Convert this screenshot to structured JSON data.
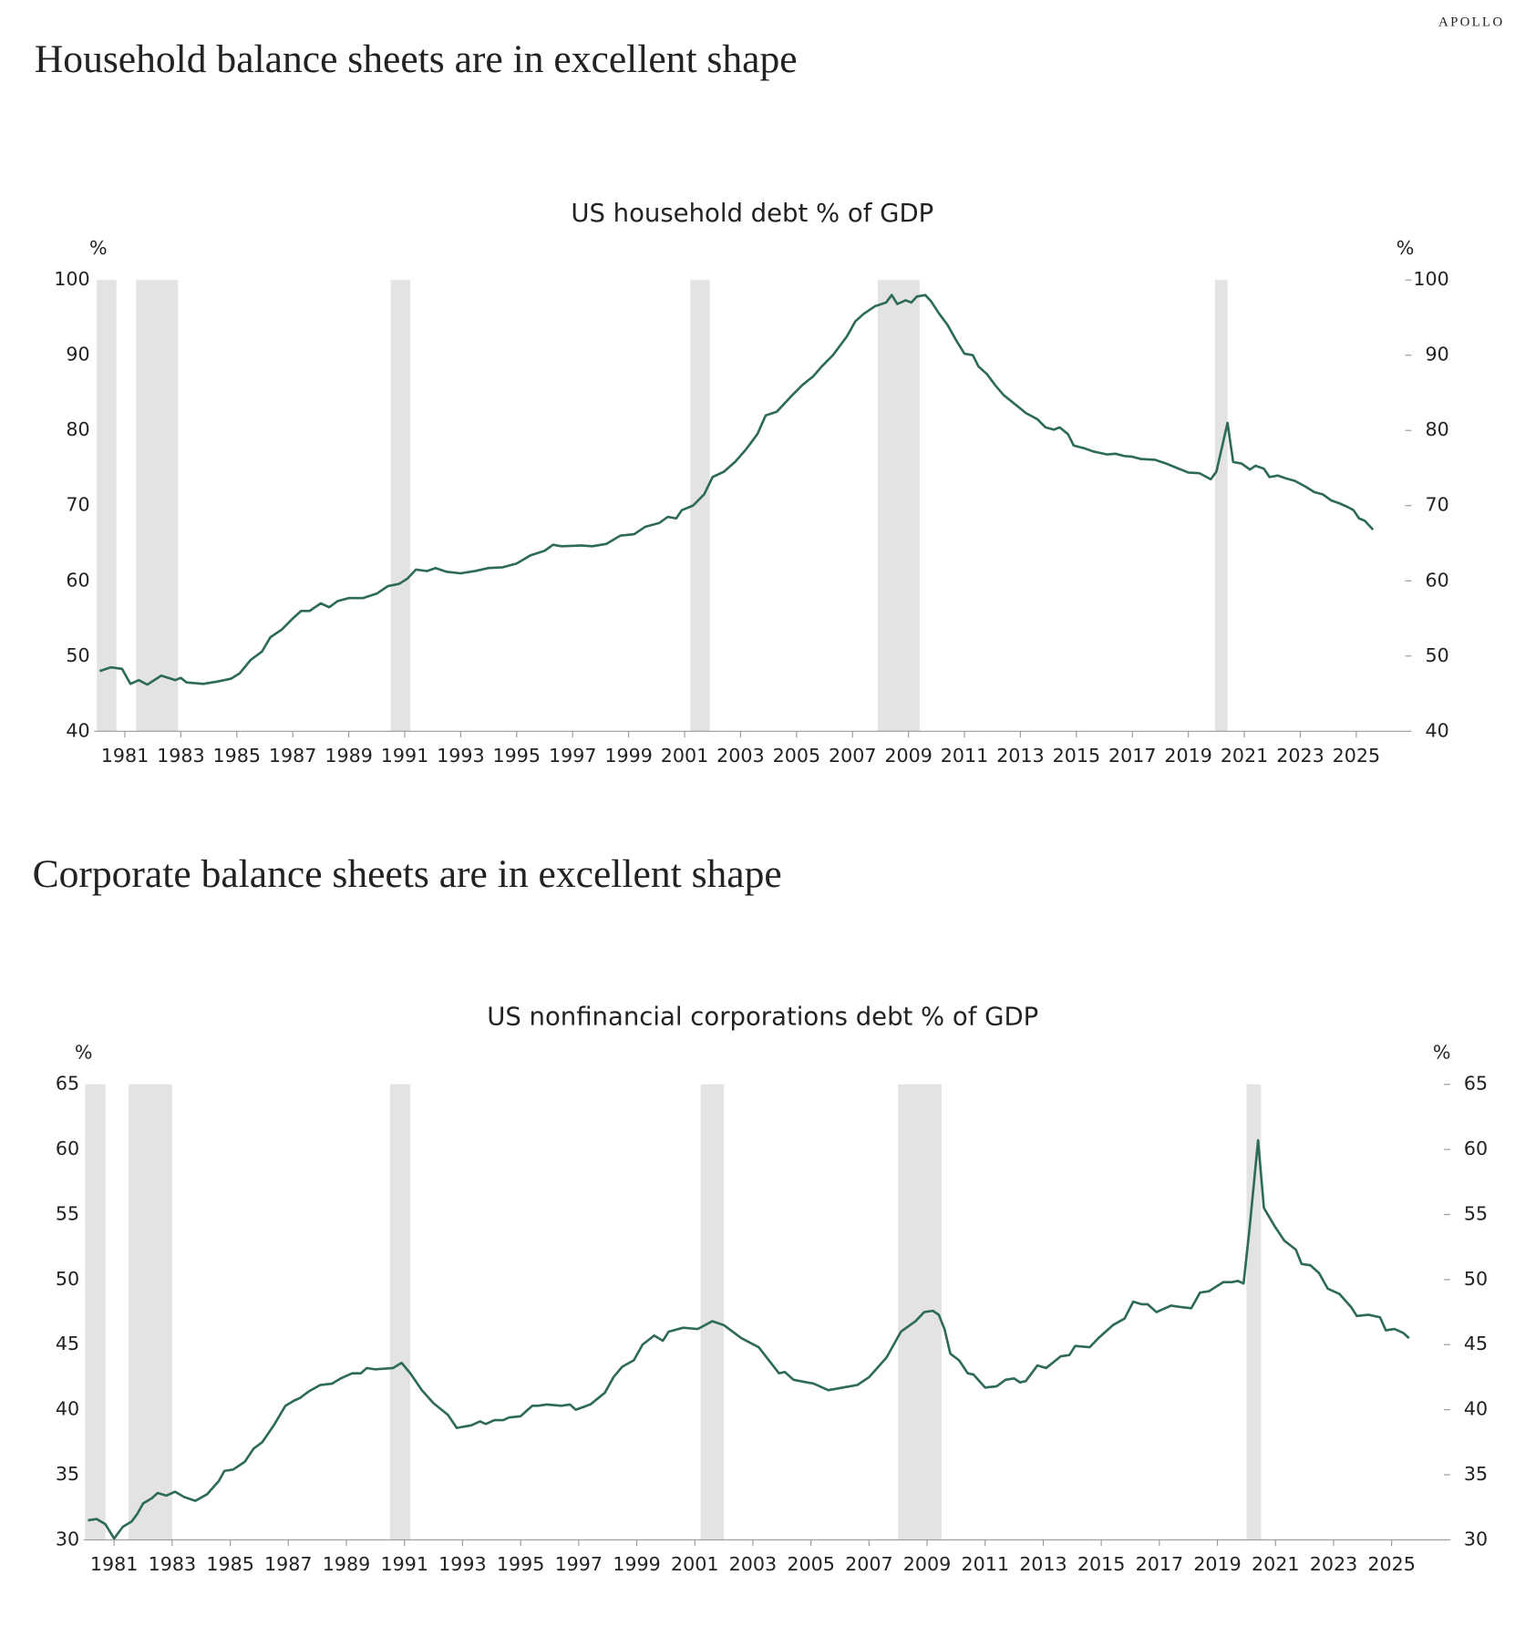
{
  "brand": "APOLLO",
  "chart_data": [
    {
      "type": "line",
      "heading": "Household balance sheets are in excellent shape",
      "title": "US household debt % of GDP",
      "y_unit": "%",
      "color": "#2e6b56",
      "shade_color": "#e3e3e3",
      "xlim": [
        1979.9,
        2026.75
      ],
      "ylim": [
        40,
        100
      ],
      "yticks": [
        40,
        50,
        60,
        70,
        80,
        90,
        100
      ],
      "xticks": [
        1981,
        1983,
        1985,
        1987,
        1989,
        1991,
        1993,
        1995,
        1997,
        1999,
        2001,
        2003,
        2005,
        2007,
        2009,
        2011,
        2013,
        2015,
        2017,
        2019,
        2021,
        2023,
        2025
      ],
      "recessions": [
        [
          1980.0,
          1980.7
        ],
        [
          1981.4,
          1982.9
        ],
        [
          1990.5,
          1991.2
        ],
        [
          2001.2,
          2001.9
        ],
        [
          2007.9,
          2009.4
        ],
        [
          2019.95,
          2020.4
        ]
      ],
      "x": [
        1980.1,
        1980.5,
        1980.9,
        1981.2,
        1981.5,
        1981.8,
        1982.3,
        1982.8,
        1983.0,
        1983.2,
        1983.8,
        1984.3,
        1984.8,
        1985.1,
        1985.5,
        1985.9,
        1986.2,
        1986.6,
        1987.0,
        1987.3,
        1987.6,
        1988.0,
        1988.3,
        1988.6,
        1989.0,
        1989.5,
        1990.0,
        1990.4,
        1990.8,
        1991.1,
        1991.4,
        1991.8,
        1992.1,
        1992.5,
        1993.0,
        1993.5,
        1994.0,
        1994.5,
        1995.0,
        1995.5,
        1996.0,
        1996.3,
        1996.6,
        1997.3,
        1997.7,
        1998.2,
        1998.7,
        1999.2,
        1999.6,
        2000.1,
        2000.4,
        2000.7,
        2000.9,
        2001.3,
        2001.7,
        2002.0,
        2002.4,
        2002.8,
        2003.2,
        2003.6,
        2003.9,
        2004.3,
        2004.8,
        2005.2,
        2005.6,
        2005.9,
        2006.3,
        2006.8,
        2007.1,
        2007.4,
        2007.8,
        2008.2,
        2008.4,
        2008.6,
        2008.9,
        2009.1,
        2009.3,
        2009.6,
        2009.8,
        2010.1,
        2010.4,
        2010.7,
        2011.0,
        2011.3,
        2011.5,
        2011.8,
        2012.1,
        2012.4,
        2012.8,
        2013.2,
        2013.6,
        2013.9,
        2014.2,
        2014.4,
        2014.7,
        2014.9,
        2015.3,
        2015.6,
        2016.1,
        2016.4,
        2016.7,
        2017.0,
        2017.3,
        2017.8,
        2018.2,
        2018.6,
        2019.0,
        2019.4,
        2019.8,
        2020.0,
        2020.4,
        2020.6,
        2020.9,
        2021.2,
        2021.4,
        2021.7,
        2021.9,
        2022.2,
        2022.5,
        2022.8,
        2023.2,
        2023.5,
        2023.8,
        2024.1,
        2024.4,
        2024.7,
        2024.9,
        2025.1,
        2025.3,
        2025.6
      ],
      "values": [
        48.0,
        48.5,
        48.3,
        46.3,
        46.8,
        46.2,
        47.4,
        46.8,
        47.1,
        46.5,
        46.3,
        46.6,
        47.0,
        47.7,
        49.5,
        50.6,
        52.5,
        53.5,
        55.0,
        56.0,
        56.0,
        57.0,
        56.5,
        57.3,
        57.7,
        57.7,
        58.3,
        59.3,
        59.6,
        60.3,
        61.5,
        61.3,
        61.7,
        61.2,
        61.0,
        61.3,
        61.7,
        61.8,
        62.3,
        63.4,
        64.0,
        64.8,
        64.6,
        64.7,
        64.6,
        64.9,
        66.0,
        66.2,
        67.2,
        67.7,
        68.5,
        68.3,
        69.4,
        70.0,
        71.5,
        73.8,
        74.5,
        75.8,
        77.5,
        79.5,
        82.0,
        82.5,
        84.5,
        86.0,
        87.2,
        88.5,
        90.0,
        92.5,
        94.5,
        95.5,
        96.5,
        97.0,
        98.0,
        96.8,
        97.3,
        97.0,
        97.8,
        98.0,
        97.2,
        95.5,
        94.0,
        92.0,
        90.2,
        90.0,
        88.5,
        87.5,
        86.0,
        84.7,
        83.5,
        82.3,
        81.5,
        80.4,
        80.1,
        80.4,
        79.5,
        78.0,
        77.6,
        77.2,
        76.8,
        76.9,
        76.6,
        76.5,
        76.2,
        76.1,
        75.6,
        75.0,
        74.4,
        74.3,
        73.5,
        74.5,
        81.0,
        75.8,
        75.6,
        74.8,
        75.3,
        74.9,
        73.8,
        74.0,
        73.6,
        73.3,
        72.5,
        71.8,
        71.5,
        70.7,
        70.3,
        69.8,
        69.4,
        68.3,
        68.0,
        66.8
      ]
    },
    {
      "type": "line",
      "heading": "Corporate balance sheets are in excellent shape",
      "title": "US nonfinancial corporations debt % of GDP",
      "y_unit": "%",
      "color": "#2e6b56",
      "shade_color": "#e3e3e3",
      "xlim": [
        1979.95,
        2026.8
      ],
      "ylim": [
        30,
        65
      ],
      "yticks": [
        30,
        35,
        40,
        45,
        50,
        55,
        60,
        65
      ],
      "xticks": [
        1981,
        1983,
        1985,
        1987,
        1989,
        1991,
        1993,
        1995,
        1997,
        1999,
        2001,
        2003,
        2005,
        2007,
        2009,
        2011,
        2013,
        2015,
        2017,
        2019,
        2021,
        2023,
        2025
      ],
      "recessions": [
        [
          1980.0,
          1980.7
        ],
        [
          1981.5,
          1983.0
        ],
        [
          1990.5,
          1991.2
        ],
        [
          2001.2,
          2002.0
        ],
        [
          2008.0,
          2009.5
        ],
        [
          2020.0,
          2020.5
        ]
      ],
      "x": [
        1980.1,
        1980.4,
        1980.7,
        1981.0,
        1981.3,
        1981.6,
        1981.8,
        1982.0,
        1982.3,
        1982.5,
        1982.8,
        1983.1,
        1983.4,
        1983.8,
        1984.2,
        1984.6,
        1984.8,
        1985.1,
        1985.5,
        1985.8,
        1986.1,
        1986.5,
        1986.9,
        1987.2,
        1987.4,
        1987.7,
        1988.1,
        1988.5,
        1988.8,
        1989.2,
        1989.5,
        1989.7,
        1990.0,
        1990.6,
        1990.9,
        1991.2,
        1991.6,
        1992.0,
        1992.5,
        1992.8,
        1993.3,
        1993.6,
        1993.8,
        1994.1,
        1994.4,
        1994.6,
        1995.0,
        1995.4,
        1995.6,
        1995.9,
        1996.4,
        1996.7,
        1996.9,
        1997.4,
        1997.9,
        1998.2,
        1998.5,
        1998.9,
        1999.2,
        1999.6,
        1999.9,
        2000.1,
        2000.6,
        2001.1,
        2001.6,
        2002.0,
        2002.6,
        2003.2,
        2003.9,
        2004.1,
        2004.4,
        2005.1,
        2005.6,
        2006.1,
        2006.6,
        2007.0,
        2007.6,
        2008.1,
        2008.6,
        2008.9,
        2009.2,
        2009.4,
        2009.6,
        2009.8,
        2010.1,
        2010.4,
        2010.6,
        2011.0,
        2011.4,
        2011.7,
        2012.0,
        2012.2,
        2012.4,
        2012.8,
        2013.1,
        2013.6,
        2013.9,
        2014.1,
        2014.6,
        2014.9,
        2015.4,
        2015.8,
        2016.1,
        2016.4,
        2016.6,
        2016.9,
        2017.4,
        2017.7,
        2018.1,
        2018.4,
        2018.7,
        2019.2,
        2019.5,
        2019.7,
        2019.9,
        2020.1,
        2020.4,
        2020.6,
        2021.0,
        2021.3,
        2021.7,
        2021.9,
        2022.2,
        2022.5,
        2022.8,
        2023.2,
        2023.6,
        2023.8,
        2024.2,
        2024.6,
        2024.8,
        2025.1,
        2025.4,
        2025.6
      ],
      "values": [
        31.5,
        31.6,
        31.2,
        30.1,
        31.0,
        31.4,
        32.0,
        32.8,
        33.2,
        33.6,
        33.4,
        33.7,
        33.3,
        33.0,
        33.5,
        34.5,
        35.3,
        35.4,
        36.0,
        37.0,
        37.5,
        38.8,
        40.3,
        40.7,
        40.9,
        41.4,
        41.9,
        42.0,
        42.4,
        42.8,
        42.8,
        43.2,
        43.1,
        43.2,
        43.6,
        42.8,
        41.5,
        40.5,
        39.6,
        38.6,
        38.8,
        39.1,
        38.9,
        39.2,
        39.2,
        39.4,
        39.5,
        40.3,
        40.3,
        40.4,
        40.3,
        40.4,
        40.0,
        40.4,
        41.3,
        42.5,
        43.3,
        43.8,
        45.0,
        45.7,
        45.3,
        46.0,
        46.3,
        46.2,
        46.8,
        46.5,
        45.5,
        44.8,
        42.8,
        42.9,
        42.3,
        42.0,
        41.5,
        41.7,
        41.9,
        42.5,
        44.0,
        46.0,
        46.8,
        47.5,
        47.6,
        47.3,
        46.2,
        44.3,
        43.8,
        42.8,
        42.7,
        41.7,
        41.8,
        42.3,
        42.4,
        42.1,
        42.2,
        43.4,
        43.2,
        44.1,
        44.2,
        44.9,
        44.8,
        45.5,
        46.5,
        47.0,
        48.3,
        48.1,
        48.1,
        47.5,
        48.0,
        47.9,
        47.8,
        49.0,
        49.1,
        49.8,
        49.8,
        49.9,
        49.7,
        53.8,
        60.7,
        55.5,
        54.0,
        53.0,
        52.3,
        51.2,
        51.1,
        50.5,
        49.3,
        48.9,
        47.9,
        47.2,
        47.3,
        47.1,
        46.1,
        46.2,
        45.9,
        45.5
      ]
    }
  ]
}
